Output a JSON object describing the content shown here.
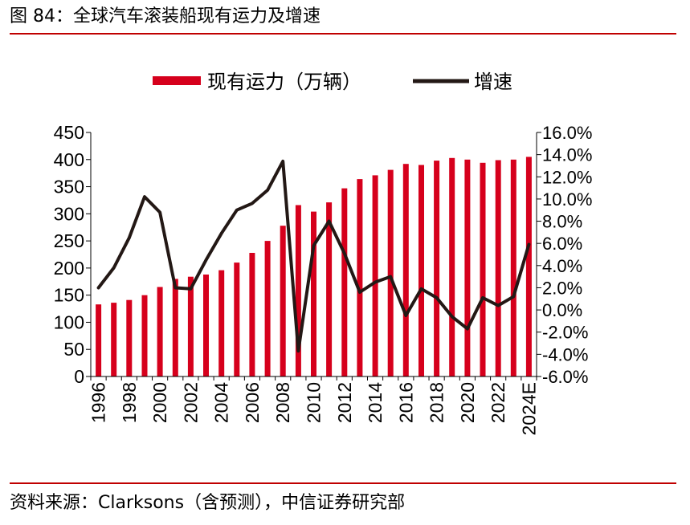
{
  "figure_title": "图 84：全球汽车滚装船现有运力及增速",
  "source_text": "资料来源：Clarksons（含预测），中信证券研究部",
  "colors": {
    "bar": "#d6001c",
    "line": "#231815",
    "rule": "#c00000"
  },
  "chart_data": {
    "type": "bar",
    "title": "",
    "legend_position": "top-center",
    "categories": [
      "1996",
      "1997",
      "1998",
      "1999",
      "2000",
      "2001",
      "2002",
      "2003",
      "2004",
      "2005",
      "2006",
      "2007",
      "2008",
      "2009",
      "2010",
      "2011",
      "2012",
      "2013",
      "2014",
      "2015",
      "2016",
      "2017",
      "2018",
      "2019",
      "2020",
      "2021",
      "2022",
      "2023",
      "2024E"
    ],
    "x_tick_labels": [
      "1996",
      "1998",
      "2000",
      "2002",
      "2004",
      "2006",
      "2008",
      "2010",
      "2012",
      "2014",
      "2016",
      "2018",
      "2020",
      "2022",
      "2024E"
    ],
    "series": [
      {
        "name": "现有运力（万辆）",
        "type": "bar",
        "axis": "left",
        "values": [
          133,
          136,
          141,
          150,
          165,
          180,
          184,
          188,
          196,
          210,
          228,
          250,
          278,
          316,
          304,
          321,
          347,
          364,
          371,
          381,
          392,
          390,
          398,
          403,
          400,
          394,
          399,
          400,
          405
        ]
      },
      {
        "name": "增速",
        "type": "line",
        "axis": "right",
        "unit": "%",
        "values": [
          2.0,
          3.8,
          6.5,
          10.2,
          8.8,
          2.0,
          1.9,
          4.5,
          6.9,
          9.0,
          9.6,
          10.8,
          13.4,
          -3.7,
          5.8,
          8.0,
          5.1,
          1.6,
          2.5,
          3.0,
          -0.5,
          1.9,
          1.1,
          -0.6,
          -1.7,
          1.1,
          0.4,
          1.2,
          5.9
        ]
      }
    ],
    "y_left": {
      "min": 0,
      "max": 450,
      "ticks": [
        0,
        50,
        100,
        150,
        200,
        250,
        300,
        350,
        400,
        450
      ]
    },
    "y_right": {
      "min": -6,
      "max": 16,
      "ticks": [
        "-6.0%",
        "-4.0%",
        "-2.0%",
        "0.0%",
        "2.0%",
        "4.0%",
        "6.0%",
        "8.0%",
        "10.0%",
        "12.0%",
        "14.0%",
        "16.0%"
      ]
    },
    "xlabel": "",
    "ylabel": "",
    "grid": false
  }
}
